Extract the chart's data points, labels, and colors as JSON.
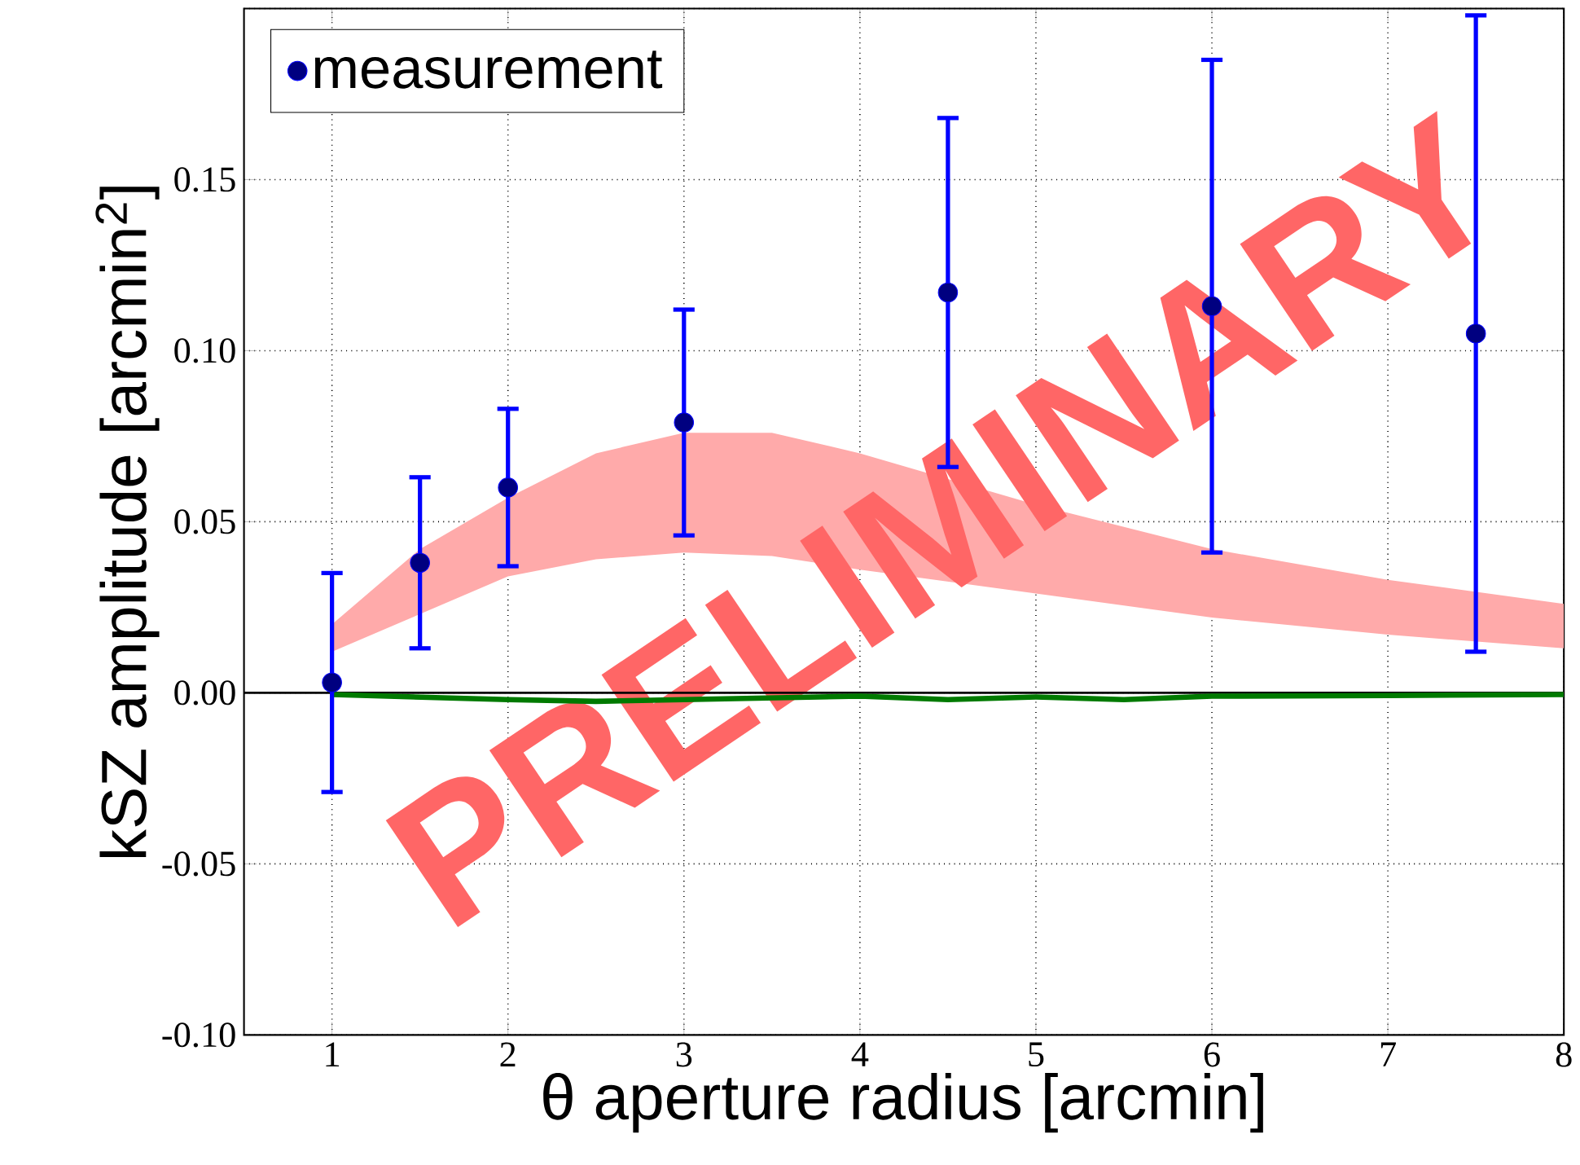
{
  "chart_data": {
    "type": "scatter",
    "xlabel": "θ aperture radius [arcmin]",
    "ylabel": "kSZ amplitude [arcmin$^{2}$]",
    "xlim": [
      0.5,
      8
    ],
    "ylim": [
      -0.1,
      0.2
    ],
    "xticks": [
      1,
      2,
      3,
      4,
      5,
      6,
      7,
      8
    ],
    "yticks": [
      {
        "value": -0.1,
        "label": "-0.10"
      },
      {
        "value": -0.05,
        "label": "-0.05"
      },
      {
        "value": 0,
        "label": "0.00"
      },
      {
        "value": 0.05,
        "label": "0.05"
      },
      {
        "value": 0.1,
        "label": "0.10"
      },
      {
        "value": 0.15,
        "label": "0.15"
      },
      {
        "value": 0.2,
        "label": null
      }
    ],
    "grid": true,
    "legend": "top left",
    "ref_lines": [
      {
        "axis": "y",
        "value": 0,
        "color": "#000000"
      }
    ],
    "annotations": [
      "PRELIMINARY"
    ],
    "series": [
      {
        "type": "area",
        "color": "#ffaaaa",
        "x": [
          1,
          1.5,
          2,
          2.5,
          3,
          3.5,
          4,
          5,
          6,
          7,
          8
        ],
        "values": [
          null,
          null,
          null,
          null,
          null,
          null,
          null,
          null,
          null,
          null,
          null
        ],
        "lower": [
          0.012,
          0.023,
          0.034,
          0.039,
          0.041,
          0.04,
          0.036,
          0.029,
          0.022,
          0.017,
          0.013
        ],
        "upper": [
          0.02,
          0.042,
          0.057,
          0.07,
          0.076,
          0.076,
          0.07,
          0.055,
          0.042,
          0.033,
          0.026
        ]
      },
      {
        "type": "line",
        "color": "#007a00",
        "marker": "none",
        "x": [
          1,
          2,
          2.5,
          3,
          4,
          4.5,
          5,
          5.5,
          6,
          7,
          8
        ],
        "values": [
          -0.0005,
          -0.002,
          -0.0025,
          -0.002,
          -0.001,
          -0.002,
          -0.0012,
          -0.002,
          -0.001,
          -0.0008,
          -0.0005
        ]
      },
      {
        "name": "measurement",
        "color": "#0000ff",
        "marker": "circle",
        "x": [
          1,
          1.5,
          2,
          3,
          4.5,
          6,
          7.5
        ],
        "values": [
          0.003,
          0.038,
          0.06,
          0.079,
          0.117,
          0.113,
          0.105
        ],
        "errors": [
          0.032,
          0.025,
          0.023,
          0.033,
          0.051,
          0.072,
          0.093
        ]
      }
    ]
  }
}
